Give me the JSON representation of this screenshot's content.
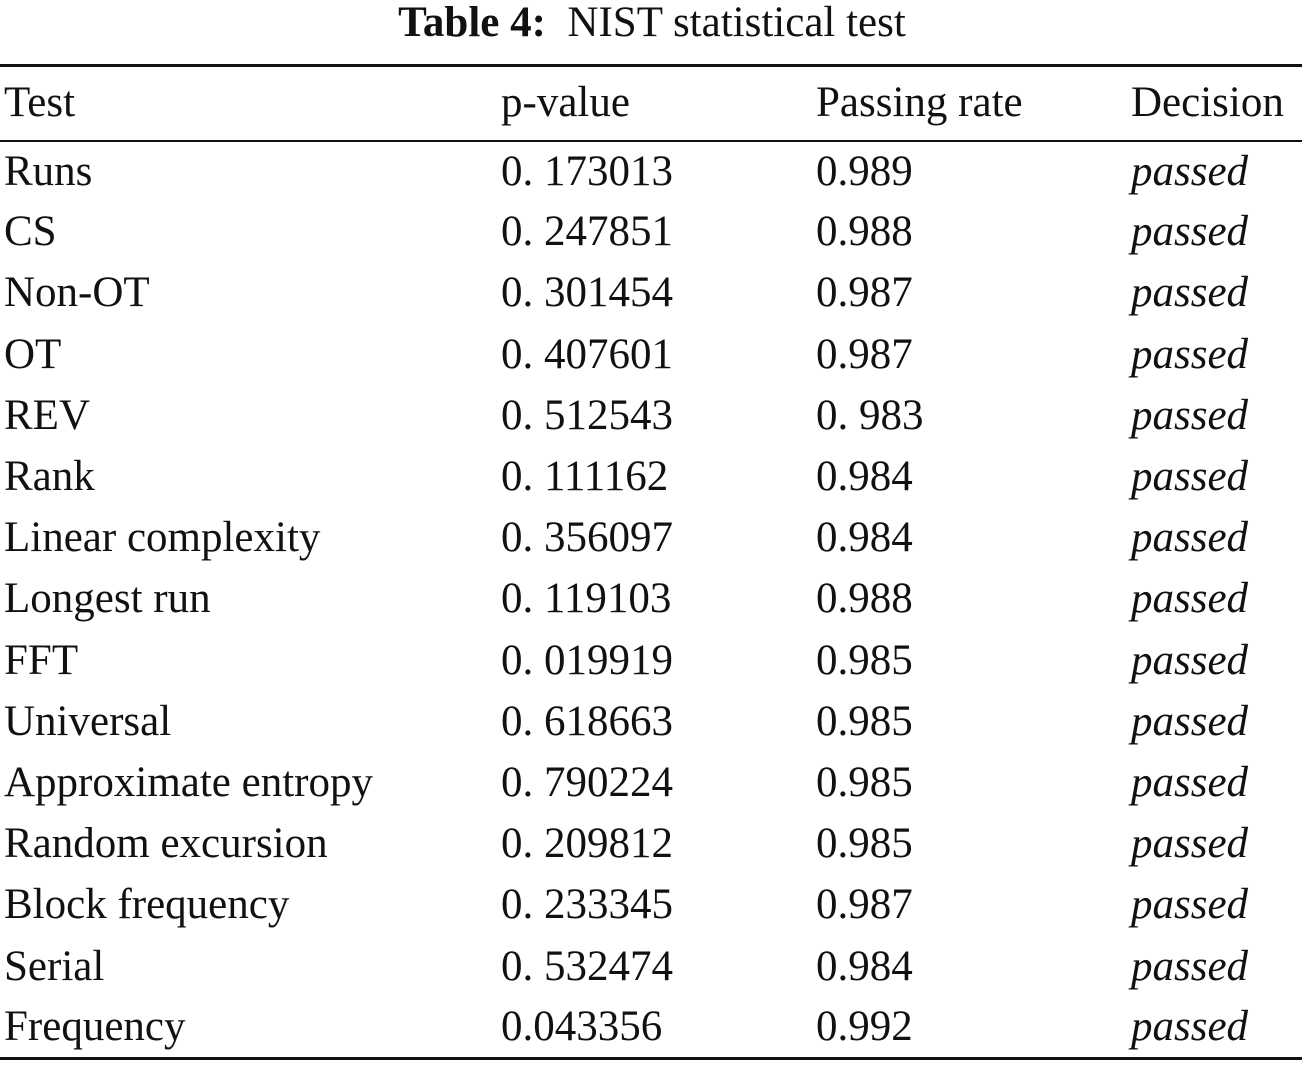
{
  "caption": {
    "label": "Table 4:",
    "title": "NIST statistical test"
  },
  "table": {
    "headers": [
      "Test",
      "p-value",
      "Passing rate",
      "Decision"
    ],
    "rows": [
      [
        "Runs",
        "0. 173013",
        "0.989",
        "passed"
      ],
      [
        "CS",
        "0. 247851",
        "0.988",
        "passed"
      ],
      [
        "Non-OT",
        "0. 301454",
        "0.987",
        "passed"
      ],
      [
        "OT",
        "0. 407601",
        "0.987",
        "passed"
      ],
      [
        "REV",
        "0. 512543",
        "0. 983",
        "passed"
      ],
      [
        "Rank",
        "0. 111162",
        "0.984",
        "passed"
      ],
      [
        "Linear complexity",
        "0. 356097",
        "0.984",
        "passed"
      ],
      [
        "Longest run",
        "0. 119103",
        "0.988",
        "passed"
      ],
      [
        "FFT",
        "0. 019919",
        "0.985",
        "passed"
      ],
      [
        "Universal",
        "0. 618663",
        "0.985",
        "passed"
      ],
      [
        "Approximate entropy",
        "0. 790224",
        "0.985",
        "passed"
      ],
      [
        "Random excursion",
        "0. 209812",
        "0.985",
        "passed"
      ],
      [
        "Block frequency",
        "0. 233345",
        "0.987",
        "passed"
      ],
      [
        "Serial",
        "0. 532474",
        "0.984",
        "passed"
      ],
      [
        "Frequency",
        "0.043356",
        "0.992",
        "passed"
      ]
    ]
  }
}
